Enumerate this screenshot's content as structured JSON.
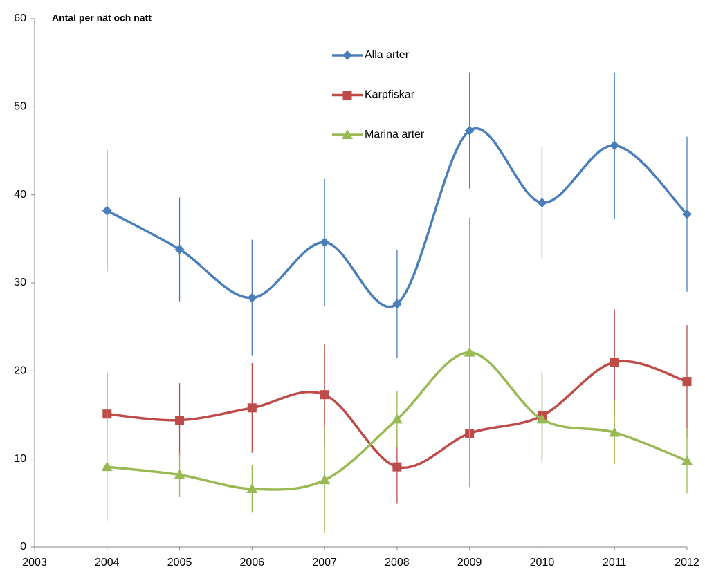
{
  "chart_data": {
    "type": "line",
    "title": "Antal per nät och natt",
    "x": [
      2004,
      2005,
      2006,
      2007,
      2008,
      2009,
      2010,
      2011,
      2012
    ],
    "xlim": [
      2003,
      2012
    ],
    "xticks": [
      2003,
      2004,
      2005,
      2006,
      2007,
      2008,
      2009,
      2010,
      2011,
      2012
    ],
    "ylim": [
      0,
      60
    ],
    "yticks": [
      0,
      10,
      20,
      30,
      40,
      50,
      60
    ],
    "grid": false,
    "smooth": true,
    "legend": "top",
    "series": [
      {
        "name": "Alla arter",
        "color": "#4a7ebb",
        "marker": "diamond",
        "values": [
          38.2,
          33.8,
          28.3,
          34.6,
          27.6,
          47.3,
          39.1,
          45.6,
          37.8
        ],
        "errors": [
          6.9,
          5.9,
          6.6,
          7.2,
          6.1,
          6.6,
          6.3,
          8.3,
          8.8
        ]
      },
      {
        "name": "Karpfiskar",
        "color": "#be4b48",
        "marker": "square",
        "values": [
          15.1,
          14.4,
          15.8,
          17.3,
          9.1,
          12.9,
          14.9,
          21.0,
          18.8
        ],
        "errors": [
          4.7,
          4.2,
          5.1,
          5.7,
          4.2,
          4.6,
          5.0,
          6.0,
          6.4
        ]
      },
      {
        "name": "Marina arter",
        "color": "#98b954",
        "marker": "triangle",
        "values": [
          9.1,
          8.2,
          6.6,
          7.6,
          14.5,
          22.1,
          14.5,
          13.0,
          9.8
        ],
        "errors": [
          6.1,
          2.5,
          2.7,
          6.0,
          3.2,
          15.3,
          5.1,
          3.6,
          3.7
        ]
      }
    ]
  }
}
